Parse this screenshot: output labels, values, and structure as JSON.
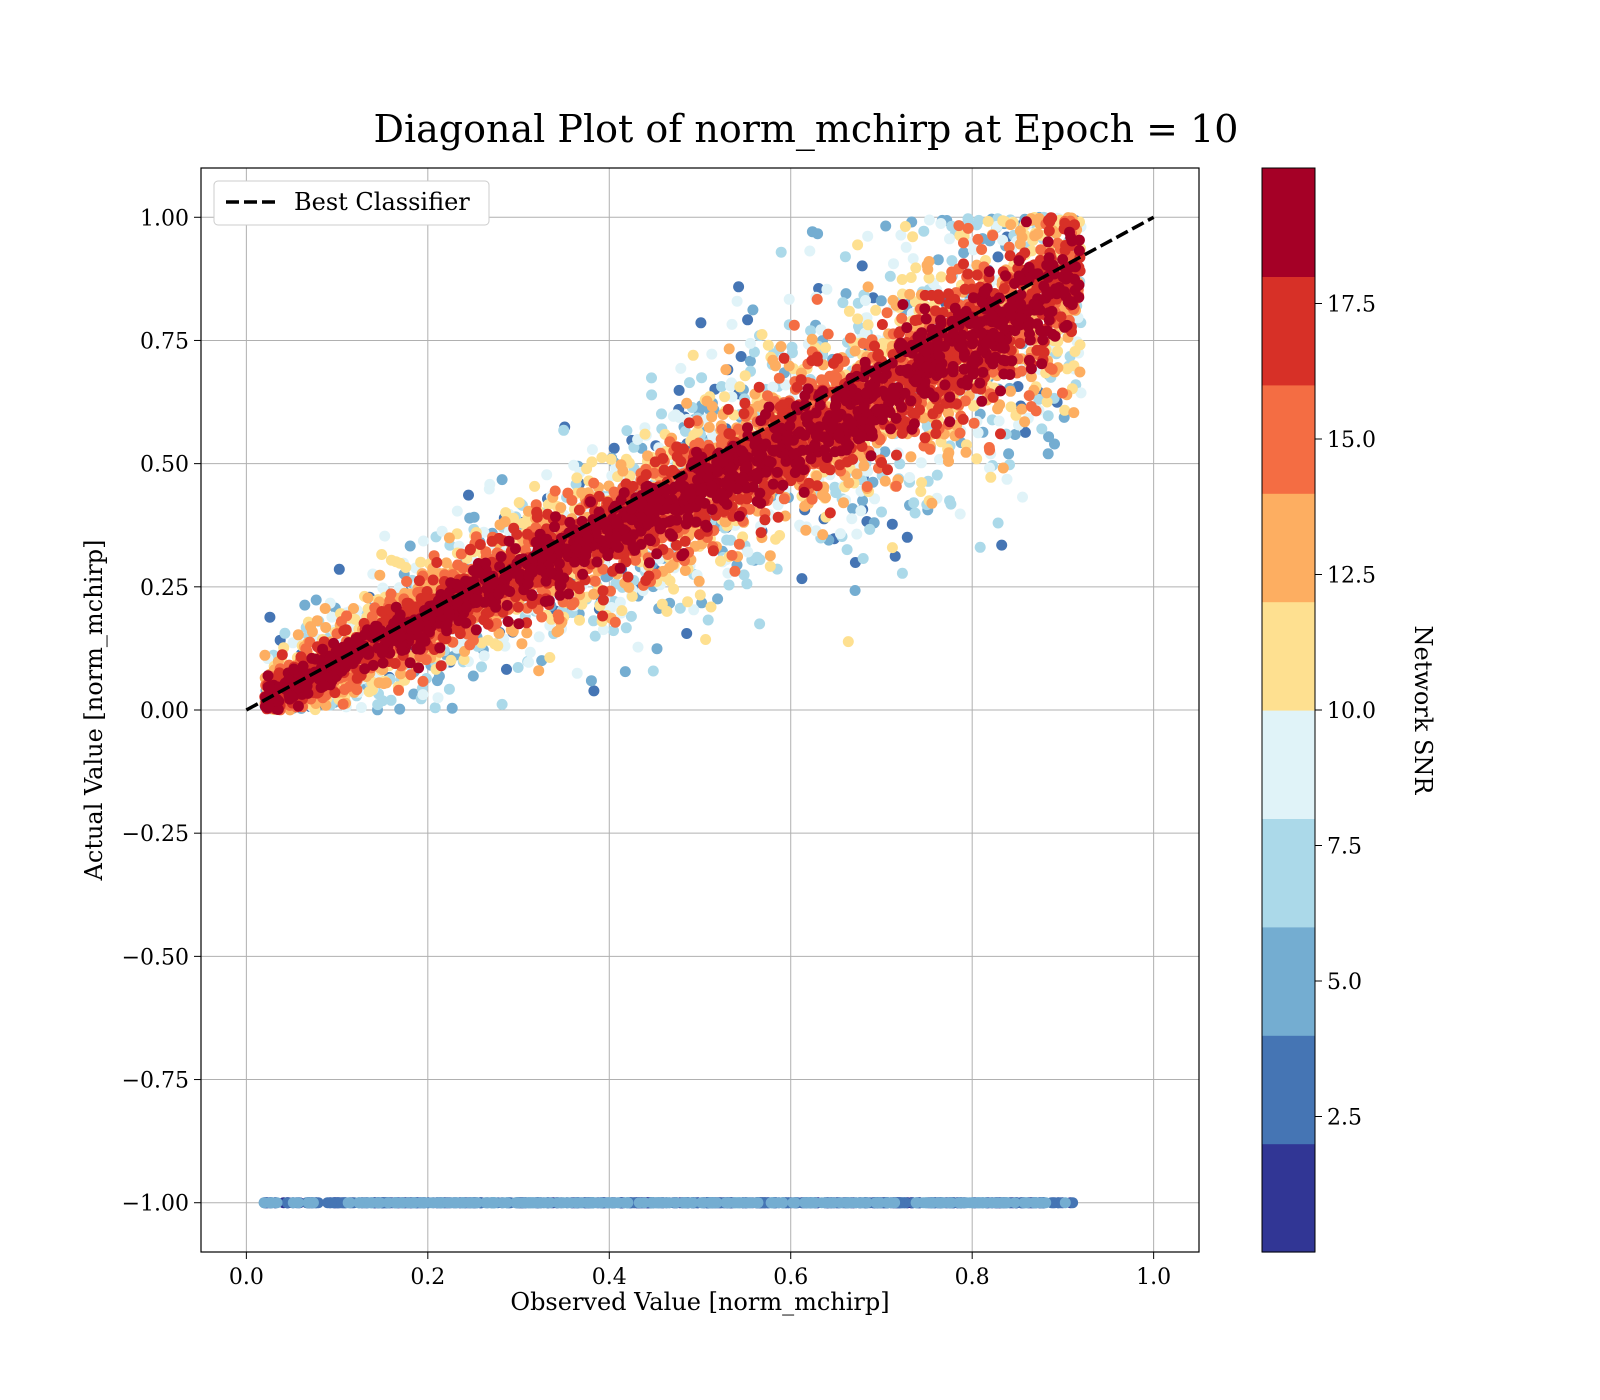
{
  "chart_data": {
    "type": "scatter",
    "title": "Diagonal Plot of norm_mchirp at Epoch = 10",
    "xlabel": "Observed Value [norm_mchirp]",
    "ylabel": "Actual Value [norm_mchirp]",
    "xlim": [
      -0.05,
      1.05
    ],
    "ylim": [
      -1.1,
      1.1
    ],
    "xticks": [
      0.0,
      0.2,
      0.4,
      0.6,
      0.8,
      1.0
    ],
    "xtick_labels": [
      "0.0",
      "0.2",
      "0.4",
      "0.6",
      "0.8",
      "1.0"
    ],
    "yticks": [
      1.0,
      0.75,
      0.5,
      0.25,
      0.0,
      -0.25,
      -0.5,
      -0.75,
      -1.0
    ],
    "ytick_labels": [
      "1.00",
      "0.75",
      "0.50",
      "0.25",
      "0.00",
      "−0.25",
      "−0.50",
      "−0.75",
      "−1.00"
    ],
    "grid": true,
    "legend": {
      "placement": "top-left",
      "entries": [
        {
          "label": "Best Classifier",
          "style": "dashed",
          "color": "#000000"
        }
      ]
    },
    "reference_line": {
      "label": "Best Classifier",
      "x": [
        0.0,
        1.0
      ],
      "y": [
        0.0,
        1.0
      ]
    },
    "colorbar": {
      "label": "Network SNR",
      "range": [
        0,
        20
      ],
      "ticks": [
        2.5,
        5.0,
        7.5,
        10.0,
        12.5,
        15.0,
        17.5
      ],
      "tick_labels": [
        "2.5",
        "5.0",
        "7.5",
        "10.0",
        "12.5",
        "15.0",
        "17.5"
      ],
      "colors": [
        "#313695",
        "#4575b4",
        "#74add1",
        "#abd9e9",
        "#e0f3f8",
        "#fee090",
        "#fdae61",
        "#f46d43",
        "#d73027",
        "#a50026"
      ]
    },
    "noise_row": {
      "y": -1.0,
      "x_range": [
        0.015,
        0.915
      ],
      "snr_range": [
        0,
        6
      ]
    },
    "signal_cloud": {
      "x_range": [
        0.02,
        0.92
      ],
      "y_range": [
        0.0,
        1.0
      ],
      "snr_range": [
        2,
        20
      ]
    }
  }
}
